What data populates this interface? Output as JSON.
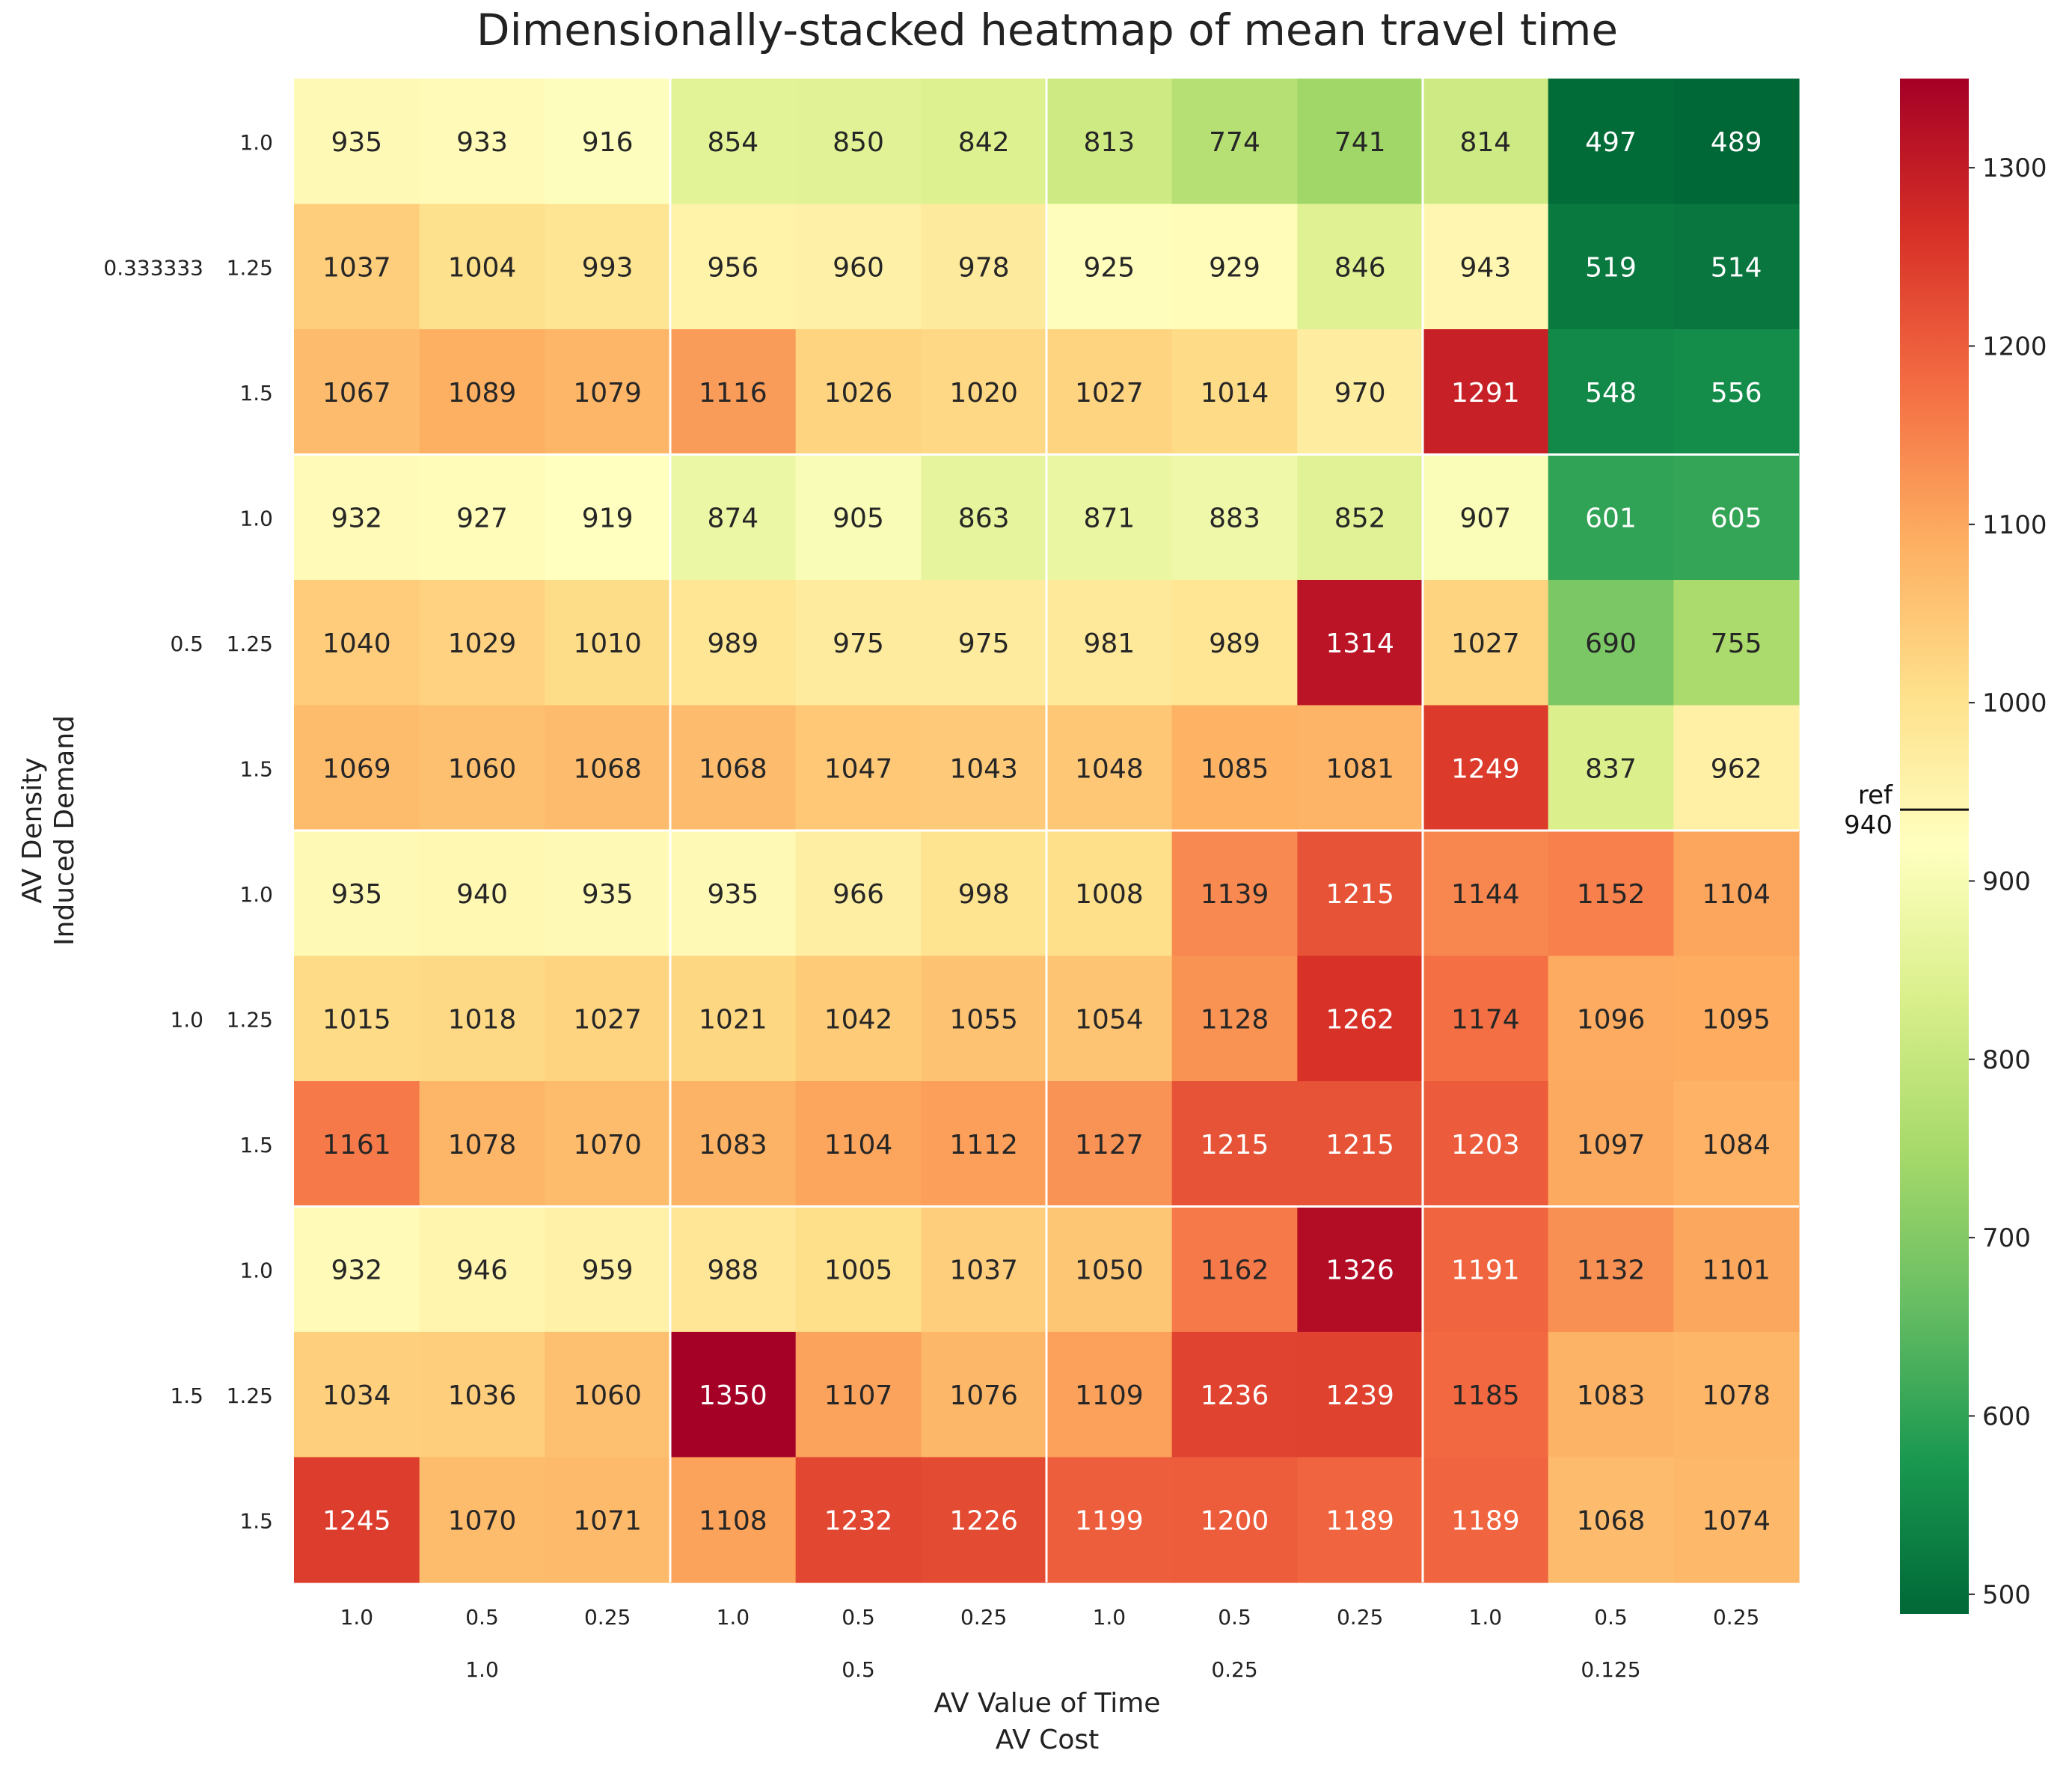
{
  "chart_data": {
    "type": "heatmap",
    "title": "Dimensionally-stacked heatmap of mean travel time",
    "xlabel": [
      "AV Value of Time",
      "AV Cost"
    ],
    "ylabel": [
      "AV Density",
      "Induced Demand"
    ],
    "x_outer_label": "AV Cost",
    "x_inner_label": "AV Value of Time",
    "y_outer_label": "AV Density",
    "y_inner_label": "Induced Demand",
    "x_outer": [
      "1.0",
      "0.5",
      "0.25",
      "0.125"
    ],
    "x_inner": [
      "1.0",
      "0.5",
      "0.25"
    ],
    "y_outer": [
      "0.333333",
      "0.5",
      "1.0",
      "1.5"
    ],
    "y_inner": [
      "1.0",
      "1.25",
      "1.5"
    ],
    "values": [
      [
        935,
        933,
        916,
        854,
        850,
        842,
        813,
        774,
        741,
        814,
        497,
        489
      ],
      [
        1037,
        1004,
        993,
        956,
        960,
        978,
        925,
        929,
        846,
        943,
        519,
        514
      ],
      [
        1067,
        1089,
        1079,
        1116,
        1026,
        1020,
        1027,
        1014,
        970,
        1291,
        548,
        556
      ],
      [
        932,
        927,
        919,
        874,
        905,
        863,
        871,
        883,
        852,
        907,
        601,
        605
      ],
      [
        1040,
        1029,
        1010,
        989,
        975,
        975,
        981,
        989,
        1314,
        1027,
        690,
        755
      ],
      [
        1069,
        1060,
        1068,
        1068,
        1047,
        1043,
        1048,
        1085,
        1081,
        1249,
        837,
        962
      ],
      [
        935,
        940,
        935,
        935,
        966,
        998,
        1008,
        1139,
        1215,
        1144,
        1152,
        1104
      ],
      [
        1015,
        1018,
        1027,
        1021,
        1042,
        1055,
        1054,
        1128,
        1262,
        1174,
        1096,
        1095
      ],
      [
        1161,
        1078,
        1070,
        1083,
        1104,
        1112,
        1127,
        1215,
        1215,
        1203,
        1097,
        1084
      ],
      [
        932,
        946,
        959,
        988,
        1005,
        1037,
        1050,
        1162,
        1326,
        1191,
        1132,
        1101
      ],
      [
        1034,
        1036,
        1060,
        1350,
        1107,
        1076,
        1109,
        1236,
        1239,
        1185,
        1083,
        1078
      ],
      [
        1245,
        1070,
        1071,
        1108,
        1232,
        1226,
        1199,
        1200,
        1189,
        1189,
        1068,
        1074
      ]
    ],
    "colormap": "RdYlGn_r",
    "vmin": 489,
    "vmax": 1350,
    "colorbar_ticks": [
      500,
      600,
      700,
      800,
      900,
      1000,
      1100,
      1200,
      1300
    ],
    "reference": {
      "label": "ref",
      "value": 940,
      "value_label": "940"
    },
    "grid_separator_color": "#ffffff"
  }
}
